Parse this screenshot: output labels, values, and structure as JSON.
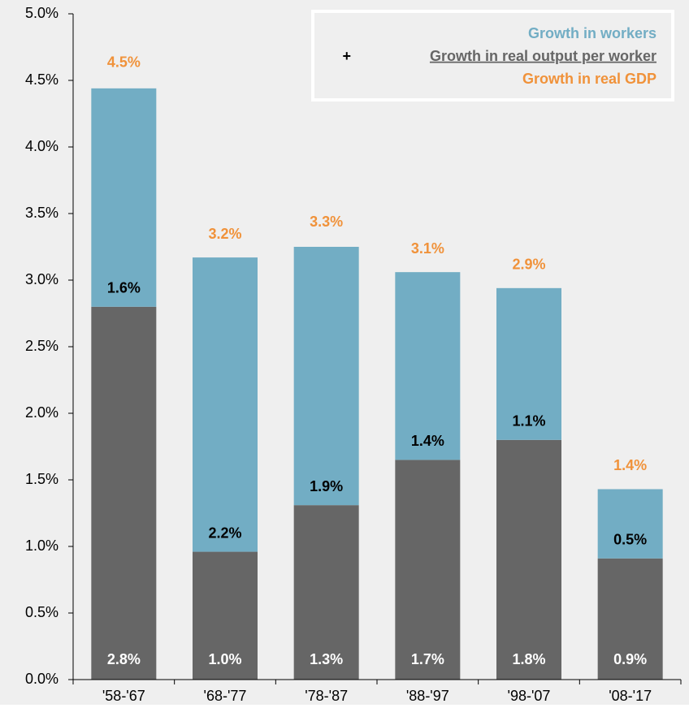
{
  "chart_data": {
    "type": "stacked-bar",
    "categories": [
      "'58-'67",
      "'68-'77",
      "'78-'87",
      "'88-'97",
      "'98-'07",
      "'08-'17"
    ],
    "series": [
      {
        "name": "Growth in real output per worker",
        "color": "#666666",
        "values": [
          2.8,
          0.96,
          1.31,
          1.65,
          1.8,
          0.91
        ],
        "value_labels": [
          "2.8%",
          "1.0%",
          "1.3%",
          "1.7%",
          "1.8%",
          "0.9%"
        ]
      },
      {
        "name": "Growth in workers",
        "color": "#72adc4",
        "values": [
          1.64,
          2.21,
          1.94,
          1.41,
          1.14,
          0.52
        ],
        "value_labels": [
          "1.6%",
          "2.2%",
          "1.9%",
          "1.4%",
          "1.1%",
          "0.5%"
        ]
      }
    ],
    "total": {
      "name": "Growth in real GDP",
      "color": "#f0923a",
      "values": [
        4.46,
        3.17,
        3.26,
        3.06,
        2.94,
        1.43
      ],
      "value_labels": [
        "4.5%",
        "3.2%",
        "3.3%",
        "3.1%",
        "2.9%",
        "1.4%"
      ]
    },
    "legend_operator": "+",
    "ylim": [
      0,
      5
    ],
    "yticks": [
      {
        "value": 0,
        "label": "0.0%"
      },
      {
        "value": 0.5,
        "label": "0.5%"
      },
      {
        "value": 1,
        "label": "1.0%"
      },
      {
        "value": 1.5,
        "label": "1.5%"
      },
      {
        "value": 2,
        "label": "2.0%"
      },
      {
        "value": 2.5,
        "label": "2.5%"
      },
      {
        "value": 3,
        "label": "3.0%"
      },
      {
        "value": 3.5,
        "label": "3.5%"
      },
      {
        "value": 4,
        "label": "4.0%"
      },
      {
        "value": 4.5,
        "label": "4.5%"
      },
      {
        "value": 5,
        "label": "5.0%"
      }
    ],
    "legend": "top-right"
  }
}
